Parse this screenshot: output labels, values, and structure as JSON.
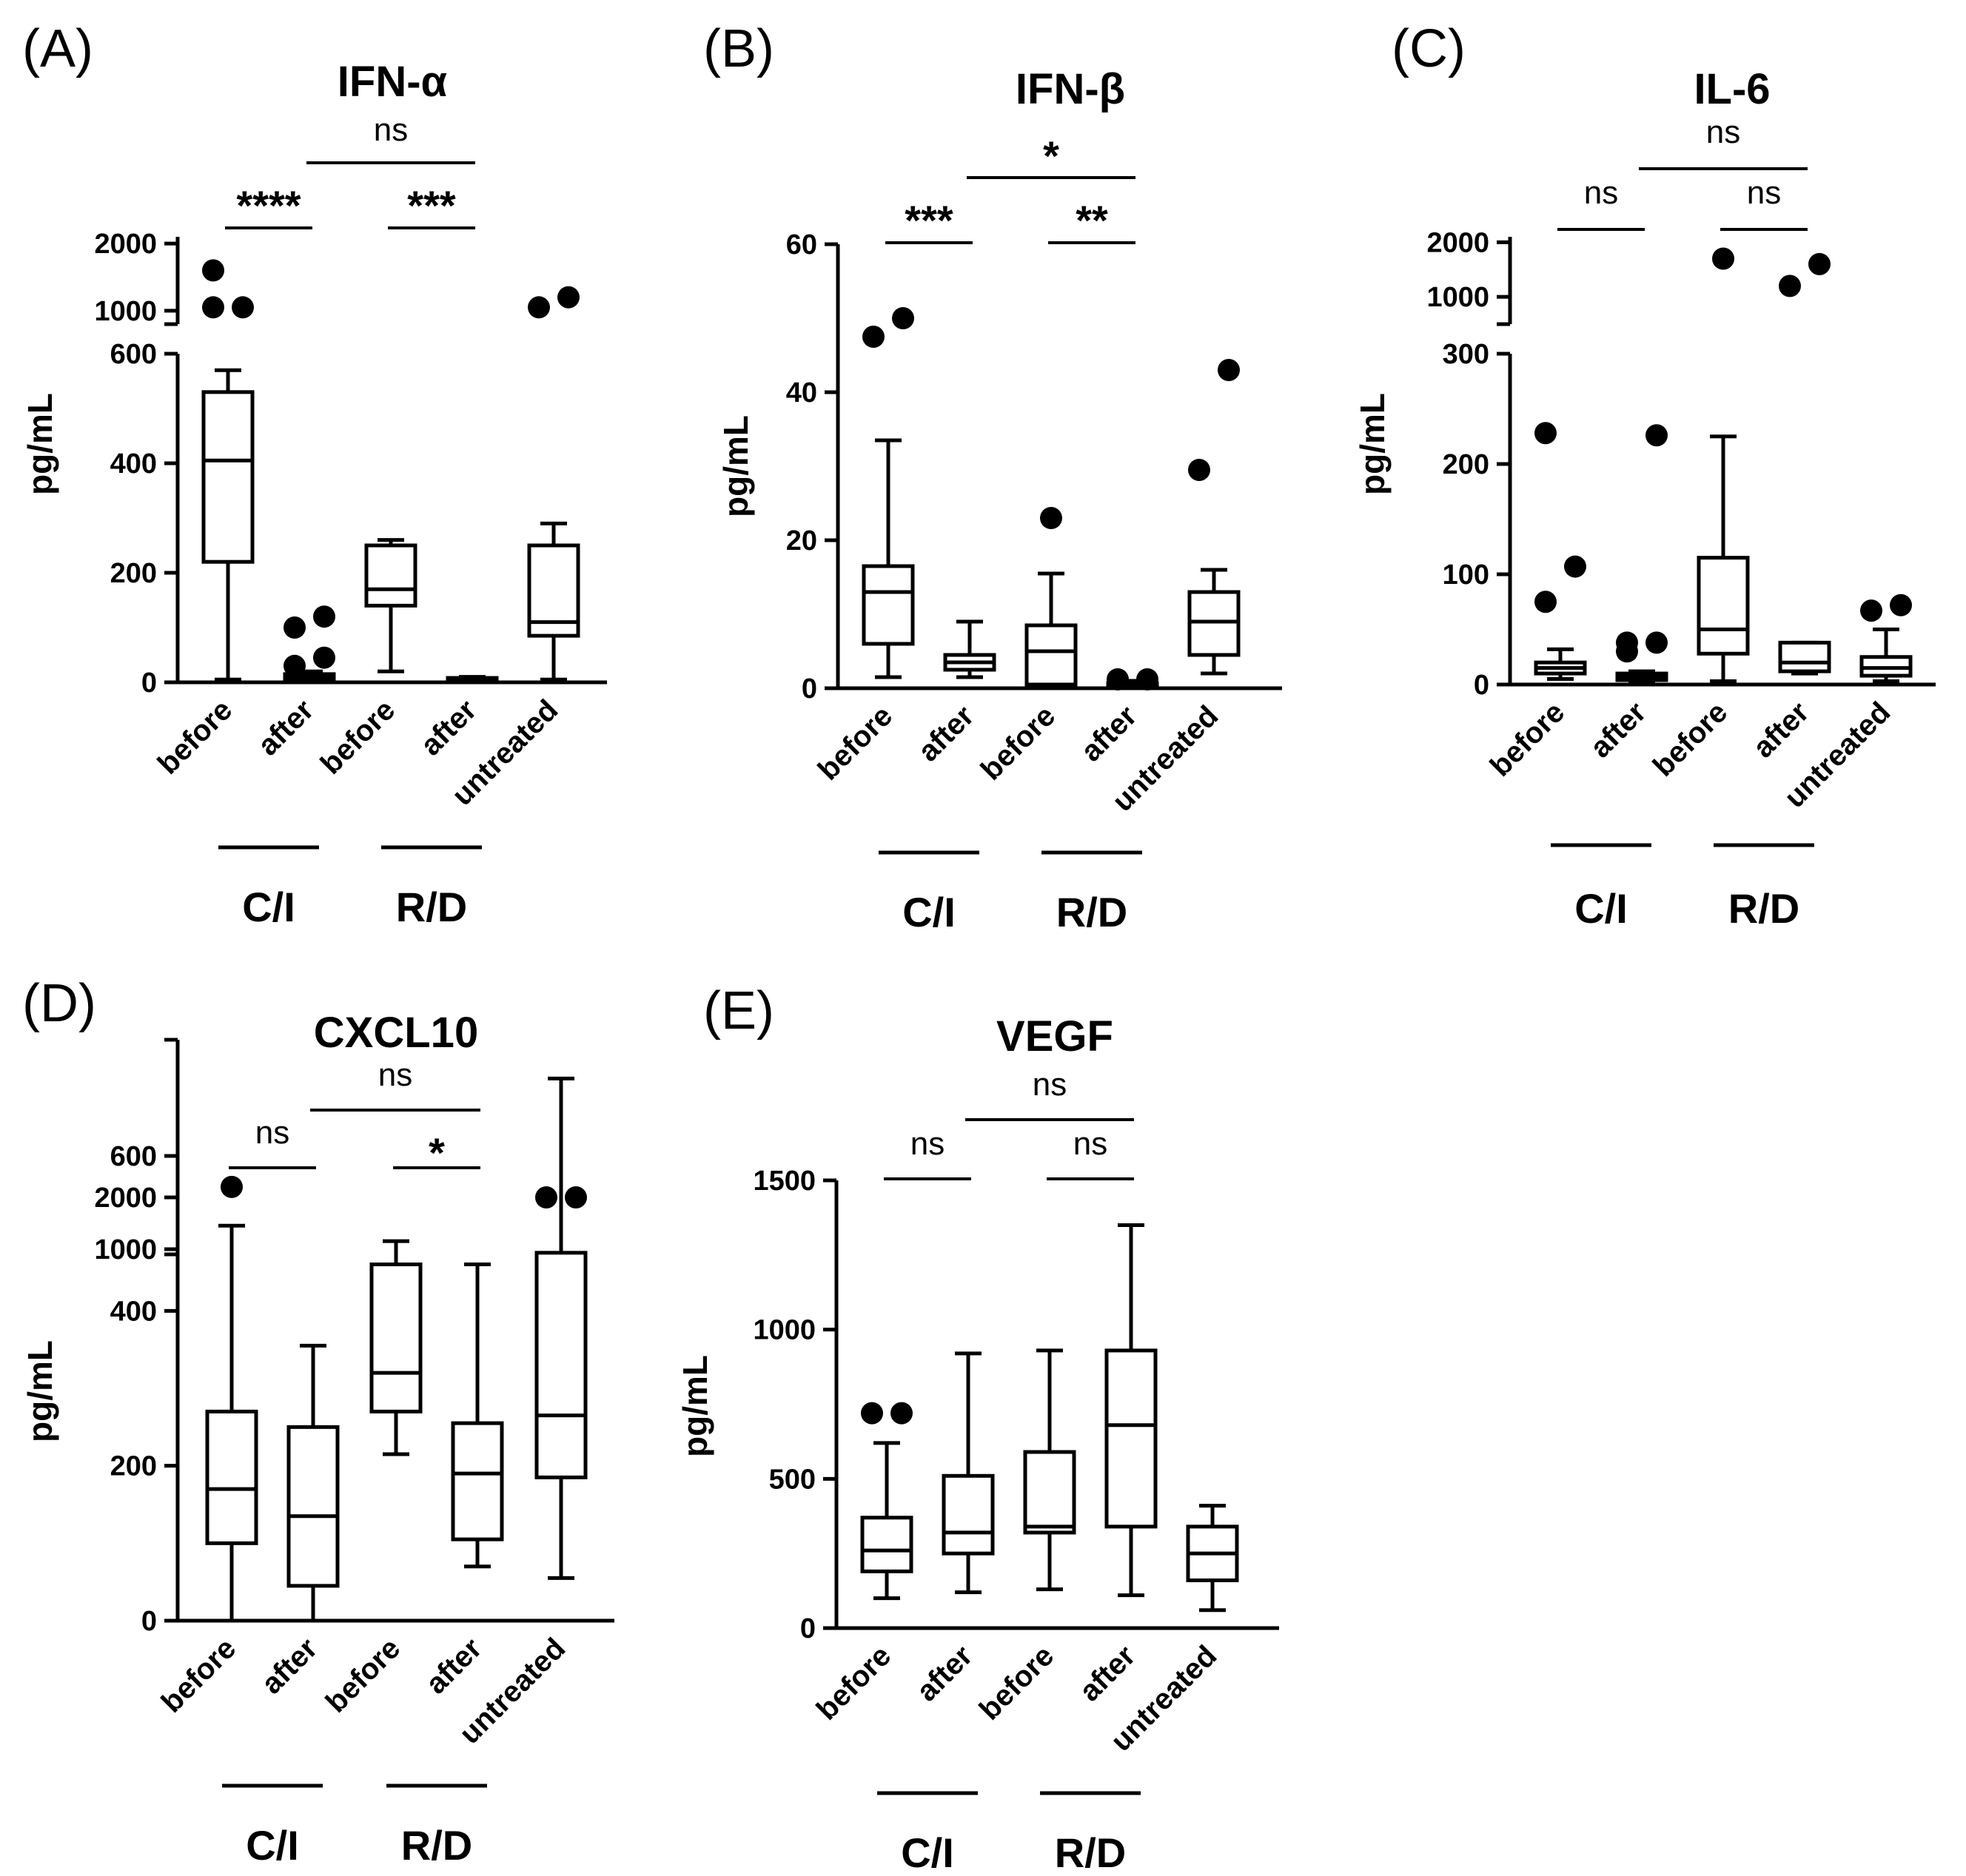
{
  "chart_data": [
    {
      "panel": "(A)",
      "type": "boxplot",
      "title": "IFN-α",
      "ylabel": "pg/mL",
      "xlabel": "",
      "categories": [
        "before",
        "after",
        "before",
        "after",
        "untreated"
      ],
      "groups": [
        {
          "label": "C/I",
          "categories": [
            0,
            1
          ]
        },
        {
          "label": "R/D",
          "categories": [
            2,
            3
          ]
        }
      ],
      "yaxis": {
        "lower": {
          "range": [
            0,
            600
          ],
          "ticks": [
            0,
            200,
            400,
            600
          ],
          "tick_labels": [
            "0",
            "200",
            "400",
            "600"
          ]
        },
        "upper": {
          "range": [
            800,
            2100
          ],
          "ticks": [
            1000,
            2000
          ],
          "tick_labels": [
            "1000",
            "2000"
          ]
        }
      },
      "boxes": [
        {
          "min": 5,
          "q1": 220,
          "median": 405,
          "q3": 530,
          "max": 570,
          "outliers": [
            1050,
            1050,
            1600
          ]
        },
        {
          "min": 0,
          "q1": 5,
          "median": 10,
          "q3": 15,
          "max": 20,
          "outliers": [
            30,
            45,
            100,
            120
          ]
        },
        {
          "min": 20,
          "q1": 140,
          "median": 170,
          "q3": 250,
          "max": 260,
          "outliers": []
        },
        {
          "min": 0,
          "q1": 2,
          "median": 5,
          "q3": 8,
          "max": 10,
          "outliers": []
        },
        {
          "min": 5,
          "q1": 85,
          "median": 110,
          "q3": 250,
          "max": 290,
          "outliers": [
            1050,
            1200
          ]
        }
      ],
      "comparisons": [
        {
          "from": 0,
          "to": 1,
          "label": "****"
        },
        {
          "from": 2,
          "to": 3,
          "label": "***"
        },
        {
          "from": 1,
          "to": 3,
          "label": "ns"
        }
      ]
    },
    {
      "panel": "(B)",
      "type": "boxplot",
      "title": "IFN-β",
      "ylabel": "pg/mL",
      "xlabel": "",
      "categories": [
        "before",
        "after",
        "before",
        "after",
        "untreated"
      ],
      "groups": [
        {
          "label": "C/I",
          "categories": [
            0,
            1
          ]
        },
        {
          "label": "R/D",
          "categories": [
            2,
            3
          ]
        }
      ],
      "yaxis": {
        "lower": {
          "range": [
            0,
            60
          ],
          "ticks": [
            0,
            20,
            40,
            60
          ],
          "tick_labels": [
            "0",
            "20",
            "40",
            "60"
          ]
        }
      },
      "boxes": [
        {
          "min": 1.5,
          "q1": 6,
          "median": 13,
          "q3": 16.5,
          "max": 33.5,
          "outliers": [
            47.5,
            50
          ]
        },
        {
          "min": 1.5,
          "q1": 2.5,
          "median": 3.5,
          "q3": 4.5,
          "max": 9,
          "outliers": []
        },
        {
          "min": 0,
          "q1": 0.5,
          "median": 5,
          "q3": 8.5,
          "max": 15.5,
          "outliers": [
            23
          ]
        },
        {
          "min": 0,
          "q1": 0.3,
          "median": 0.5,
          "q3": 0.7,
          "max": 1,
          "outliers": [
            1.2,
            1.2
          ]
        },
        {
          "min": 2,
          "q1": 4.5,
          "median": 9,
          "q3": 13,
          "max": 16,
          "outliers": [
            29.5,
            43
          ]
        }
      ],
      "comparisons": [
        {
          "from": 0,
          "to": 1,
          "label": "***"
        },
        {
          "from": 2,
          "to": 3,
          "label": "**"
        },
        {
          "from": 1,
          "to": 3,
          "label": "*"
        }
      ]
    },
    {
      "panel": "(C)",
      "type": "boxplot",
      "title": "IL-6",
      "ylabel": "pg/mL",
      "xlabel": "",
      "categories": [
        "before",
        "after",
        "before",
        "after",
        "untreated"
      ],
      "groups": [
        {
          "label": "C/I",
          "categories": [
            0,
            1
          ]
        },
        {
          "label": "R/D",
          "categories": [
            2,
            3
          ]
        }
      ],
      "yaxis": {
        "lower": {
          "range": [
            0,
            300
          ],
          "ticks": [
            0,
            100,
            200,
            300
          ],
          "tick_labels": [
            "0",
            "100",
            "200",
            "300"
          ]
        },
        "upper": {
          "range": [
            500,
            2100
          ],
          "ticks": [
            1000,
            2000
          ],
          "tick_labels": [
            "1000",
            "2000"
          ]
        }
      },
      "boxes": [
        {
          "min": 5,
          "q1": 10,
          "median": 15,
          "q3": 20,
          "max": 32,
          "outliers": [
            75,
            107,
            228
          ]
        },
        {
          "min": 2,
          "q1": 4,
          "median": 7,
          "q3": 10,
          "max": 12,
          "outliers": [
            30,
            38,
            38,
            226
          ]
        },
        {
          "min": 3,
          "q1": 28,
          "median": 50,
          "q3": 115,
          "max": 225,
          "outliers": [
            1700
          ]
        },
        {
          "min": 10,
          "q1": 12,
          "median": 20,
          "q3": 38,
          "max": 38,
          "outliers": [
            1200,
            1600
          ]
        },
        {
          "min": 3,
          "q1": 8,
          "median": 15,
          "q3": 25,
          "max": 50,
          "outliers": [
            67,
            72
          ]
        }
      ],
      "comparisons": [
        {
          "from": 0,
          "to": 1,
          "label": "ns"
        },
        {
          "from": 2,
          "to": 3,
          "label": "ns"
        },
        {
          "from": 1,
          "to": 3,
          "label": "ns"
        }
      ]
    },
    {
      "panel": "(D)",
      "type": "boxplot",
      "title": "CXCL10",
      "ylabel": "pg/mL",
      "xlabel": "",
      "categories": [
        "before",
        "after",
        "before",
        "after",
        "untreated"
      ],
      "groups": [
        {
          "label": "C/I",
          "categories": [
            0,
            1
          ]
        },
        {
          "label": "R/D",
          "categories": [
            2,
            3
          ]
        }
      ],
      "yaxis": {
        "lower": {
          "range": [
            0,
            750
          ],
          "ticks": [
            0,
            200,
            400,
            600
          ],
          "tick_labels": [
            "0",
            "200",
            "400",
            "600"
          ]
        },
        "upper": {
          "range": [
            900,
            2400
          ],
          "ticks": [
            1000,
            2000
          ],
          "tick_labels": [
            "1000",
            "2000"
          ]
        }
      },
      "boxes": [
        {
          "min": 0,
          "q1": 100,
          "median": 170,
          "q3": 270,
          "max": 510,
          "outliers": [
            560
          ]
        },
        {
          "min": 0,
          "q1": 45,
          "median": 135,
          "q3": 250,
          "max": 355,
          "outliers": []
        },
        {
          "min": 215,
          "q1": 270,
          "median": 320,
          "q3": 460,
          "max": 490,
          "outliers": []
        },
        {
          "min": 70,
          "q1": 105,
          "median": 190,
          "q3": 255,
          "max": 460,
          "outliers": []
        },
        {
          "min": 55,
          "q1": 185,
          "median": 265,
          "q3": 475,
          "max": 700,
          "outliers": [
            2000,
            2000
          ]
        }
      ],
      "comparisons": [
        {
          "from": 0,
          "to": 1,
          "label": "ns"
        },
        {
          "from": 2,
          "to": 3,
          "label": "*"
        },
        {
          "from": 1,
          "to": 3,
          "label": "ns"
        }
      ]
    },
    {
      "panel": "(E)",
      "type": "boxplot",
      "title": "VEGF",
      "ylabel": "pg/mL",
      "xlabel": "",
      "categories": [
        "before",
        "after",
        "before",
        "after",
        "untreated"
      ],
      "groups": [
        {
          "label": "C/I",
          "categories": [
            0,
            1
          ]
        },
        {
          "label": "R/D",
          "categories": [
            2,
            3
          ]
        }
      ],
      "yaxis": {
        "lower": {
          "range": [
            0,
            1500
          ],
          "ticks": [
            0,
            500,
            1000,
            1500
          ],
          "tick_labels": [
            "0",
            "500",
            "1000",
            "1500"
          ]
        }
      },
      "boxes": [
        {
          "min": 100,
          "q1": 190,
          "median": 260,
          "q3": 370,
          "max": 620,
          "outliers": [
            720,
            720
          ]
        },
        {
          "min": 120,
          "q1": 250,
          "median": 320,
          "q3": 510,
          "max": 920,
          "outliers": []
        },
        {
          "min": 130,
          "q1": 320,
          "median": 340,
          "q3": 590,
          "max": 930,
          "outliers": []
        },
        {
          "min": 110,
          "q1": 340,
          "median": 680,
          "q3": 930,
          "max": 1350,
          "outliers": []
        },
        {
          "min": 60,
          "q1": 160,
          "median": 250,
          "q3": 340,
          "max": 410,
          "outliers": []
        }
      ],
      "comparisons": [
        {
          "from": 0,
          "to": 1,
          "label": "ns"
        },
        {
          "from": 2,
          "to": 3,
          "label": "ns"
        },
        {
          "from": 1,
          "to": 3,
          "label": "ns"
        }
      ]
    }
  ]
}
